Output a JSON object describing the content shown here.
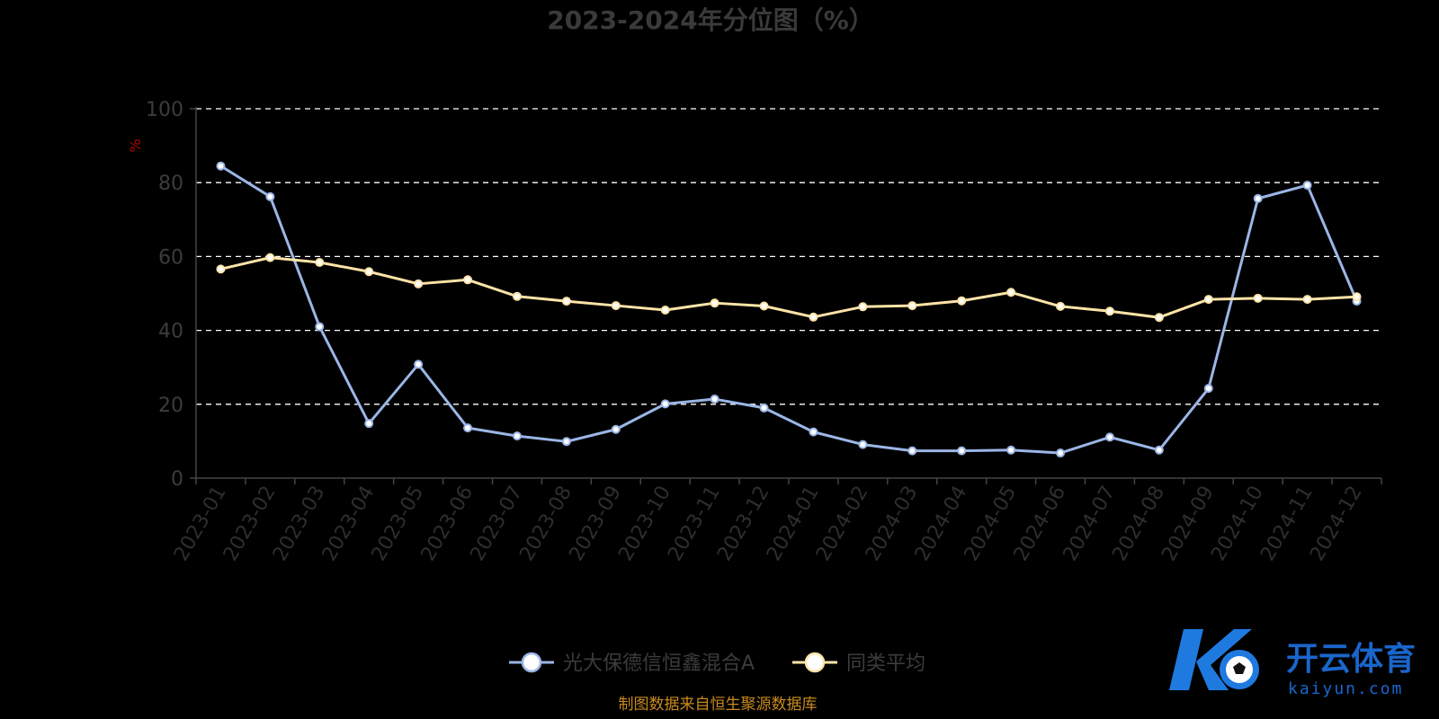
{
  "chart_data": {
    "type": "line",
    "title": "2023-2024年分位图（%）",
    "ylabel": "%",
    "xlabel": "",
    "ylim": [
      0,
      100
    ],
    "yticks": [
      0,
      20,
      40,
      60,
      80,
      100
    ],
    "grid": true,
    "legend_position": "bottom-center",
    "categories": [
      "2023-01",
      "2023-02",
      "2023-03",
      "2023-04",
      "2023-05",
      "2023-06",
      "2023-07",
      "2023-08",
      "2023-09",
      "2023-10",
      "2023-11",
      "2023-12",
      "2024-01",
      "2024-02",
      "2024-03",
      "2024-04",
      "2024-05",
      "2024-06",
      "2024-07",
      "2024-08",
      "2024-09",
      "2024-10",
      "2024-11",
      "2024-12"
    ],
    "series": [
      {
        "name": "光大保德信恒鑫混合A",
        "color": "#9bb6e6",
        "values": [
          84.5,
          76.2,
          41.0,
          14.8,
          30.8,
          13.6,
          11.4,
          9.9,
          13.2,
          20.1,
          21.4,
          19.0,
          12.5,
          9.1,
          7.4,
          7.4,
          7.6,
          6.8,
          11.1,
          7.6,
          24.3,
          75.7,
          79.3,
          47.9
        ]
      },
      {
        "name": "同类平均",
        "color": "#fde3a7",
        "values": [
          56.6,
          59.7,
          58.4,
          55.9,
          52.6,
          53.7,
          49.2,
          47.9,
          46.7,
          45.5,
          47.4,
          46.6,
          43.6,
          46.4,
          46.7,
          48.0,
          50.3,
          46.5,
          45.2,
          43.5,
          48.4,
          48.7,
          48.4,
          49.1
        ]
      }
    ]
  },
  "footer": {
    "source": "制图数据来自恒生聚源数据库"
  },
  "watermark": {
    "cn": "开云体育",
    "en": "kaiyun.com"
  }
}
